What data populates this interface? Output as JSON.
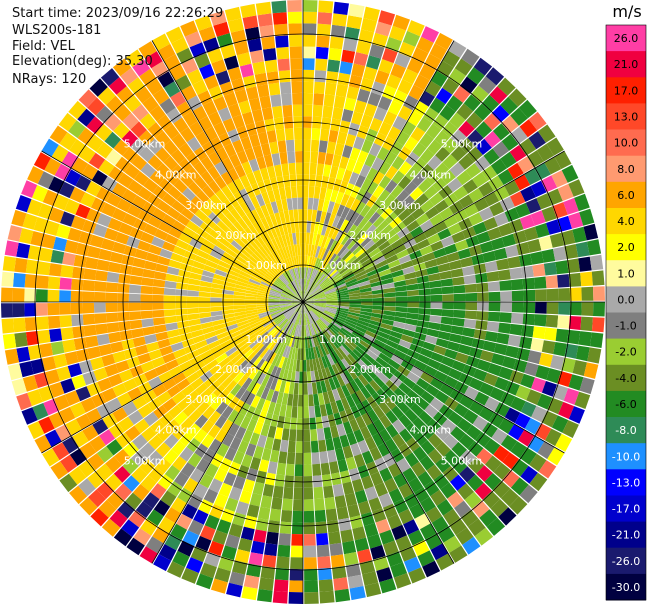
{
  "header": {
    "start_time": "Start time: 2023/09/16 22:26:29",
    "device": "WLS200s-181",
    "field": "Field: VEL",
    "elevation": "Elevation(deg): 35.30",
    "nrays": "NRays: 120"
  },
  "chart_data": {
    "type": "ppi-polar",
    "field": "VEL",
    "nrays": 120,
    "ranges_km": [
      1,
      2,
      3,
      4,
      5
    ],
    "ring_labels": [
      "1.00km",
      "2.00km",
      "3.00km",
      "4.00km",
      "5.00km"
    ],
    "colorbar": {
      "unit": "m/s",
      "ticks": [
        "26.0",
        "21.0",
        "17.0",
        "13.0",
        "10.0",
        "8.0",
        "6.0",
        "4.0",
        "2.0",
        "1.0",
        "0.0",
        "-1.0",
        "-2.0",
        "-4.0",
        "-6.0",
        "-8.0",
        "-10.0",
        "-13.0",
        "-17.0",
        "-21.0",
        "-26.0",
        "-30.0"
      ],
      "colors": [
        "#ff3ea5",
        "#f00040",
        "#ff2000",
        "#ff4828",
        "#ff6b4f",
        "#ff9a70",
        "#ffa500",
        "#ffd700",
        "#ffff00",
        "#fffb9e",
        "#a9a9a9",
        "#7f7f7f",
        "#9acd32",
        "#6b8e23",
        "#228b22",
        "#2e8b57",
        "#1e90ff",
        "#0000ff",
        "#0000cd",
        "#00008b",
        "#1a1a6e",
        "#000040"
      ]
    },
    "velocity_pattern": {
      "inner_approach_quadrant": "west-northwest",
      "inner_receding_quadrant": "east-southeast",
      "outer_noise": true
    }
  }
}
